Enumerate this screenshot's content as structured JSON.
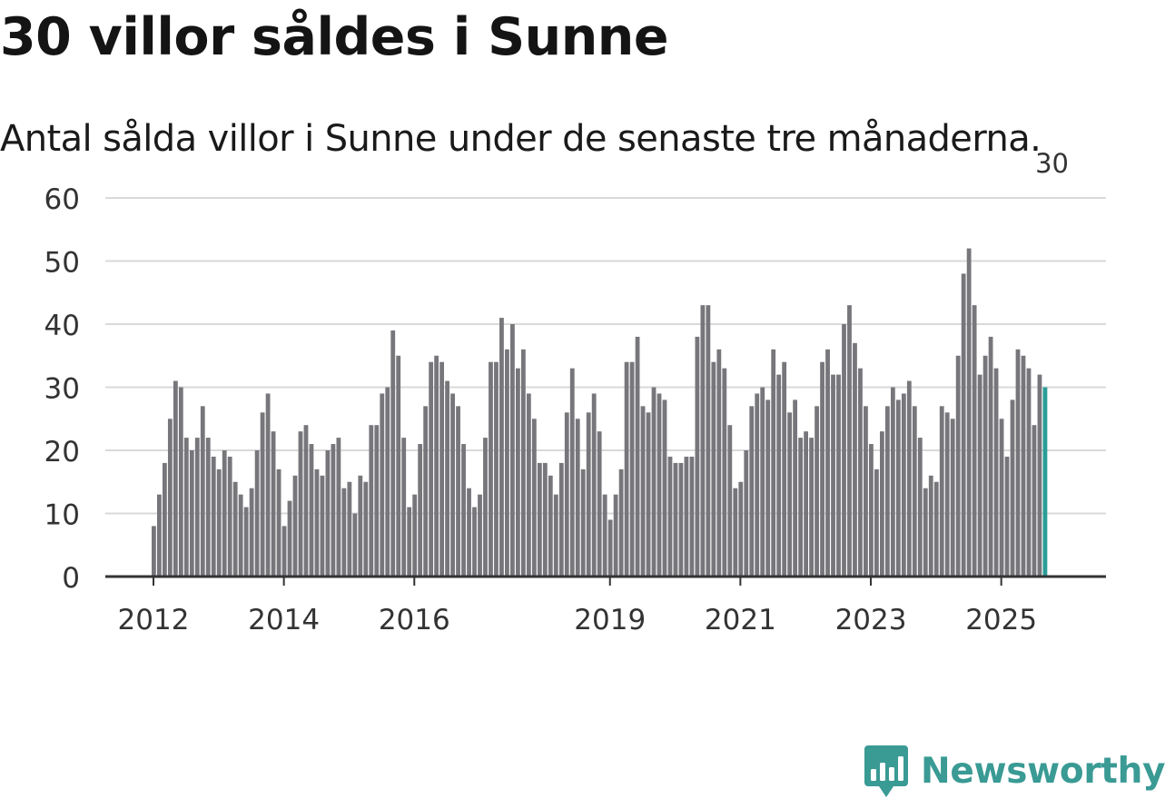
{
  "title": "30 villor såldes i Sunne",
  "subtitle": "Antal sålda villor i Sunne under de senaste tre månaderna.",
  "brand": {
    "name": "Newsworthy",
    "logo_icon": "newsworthy-bar-chart-icon",
    "color": "#3a9a94"
  },
  "chart_data": {
    "type": "bar",
    "title": "30 villor såldes i Sunne",
    "subtitle": "Antal sålda villor i Sunne under de senaste tre månaderna.",
    "xlabel": "",
    "ylabel": "",
    "ylim": [
      0,
      60
    ],
    "yticks": [
      "0",
      "10",
      "20",
      "30",
      "40",
      "50",
      "60"
    ],
    "xticks": [
      {
        "label": "2012",
        "index": 0
      },
      {
        "label": "2014",
        "index": 24
      },
      {
        "label": "2016",
        "index": 48
      },
      {
        "label": "2019",
        "index": 84
      },
      {
        "label": "2021",
        "index": 108
      },
      {
        "label": "2023",
        "index": 132
      },
      {
        "label": "2025",
        "index": 156
      }
    ],
    "grid": true,
    "bar_color": "#76767b",
    "highlight_color": "#2a9d97",
    "annotation": {
      "index": 165,
      "text": "30"
    },
    "values": [
      8,
      13,
      18,
      25,
      31,
      30,
      22,
      20,
      22,
      27,
      22,
      19,
      17,
      20,
      19,
      15,
      13,
      11,
      14,
      20,
      26,
      29,
      23,
      17,
      8,
      12,
      16,
      23,
      24,
      21,
      17,
      16,
      20,
      21,
      22,
      14,
      15,
      10,
      16,
      15,
      24,
      24,
      29,
      30,
      39,
      35,
      22,
      11,
      13,
      21,
      27,
      34,
      35,
      34,
      31,
      29,
      27,
      21,
      14,
      11,
      13,
      22,
      34,
      34,
      41,
      36,
      40,
      33,
      36,
      29,
      25,
      18,
      18,
      16,
      13,
      18,
      26,
      33,
      25,
      17,
      26,
      29,
      23,
      13,
      9,
      13,
      17,
      34,
      34,
      38,
      27,
      26,
      30,
      29,
      28,
      19,
      18,
      18,
      19,
      19,
      38,
      43,
      43,
      34,
      36,
      33,
      24,
      14,
      15,
      20,
      27,
      29,
      30,
      28,
      36,
      32,
      34,
      26,
      28,
      22,
      23,
      22,
      27,
      34,
      36,
      32,
      32,
      40,
      43,
      37,
      33,
      27,
      21,
      17,
      23,
      27,
      30,
      28,
      29,
      31,
      27,
      22,
      14,
      16,
      15,
      27,
      26,
      25,
      35,
      48,
      52,
      43,
      32,
      35,
      38,
      33,
      25,
      19,
      28,
      36,
      35,
      33,
      24,
      32,
      30
    ]
  }
}
